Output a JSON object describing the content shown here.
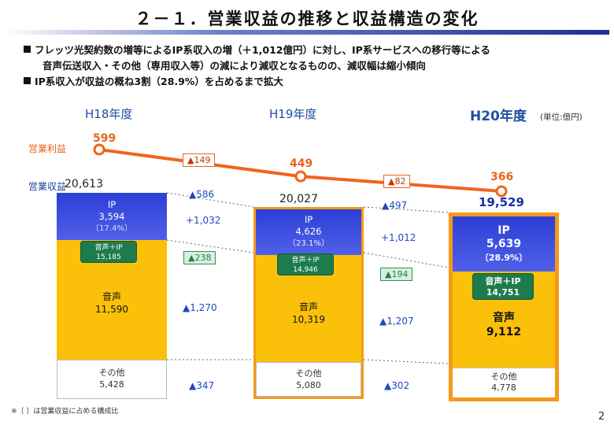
{
  "title": "２－１．営業収益の推移と収益構造の変化",
  "bullets": [
    "フレッツ光契約数の増等によるIP系収入の増（＋1,012億円）に対し、IP系サービスへの移行等による",
    "音声伝送収入・その他（専用収入等）の減により減収となるものの、減収幅は縮小傾向",
    "IP系収入が収益の概ね3割（28.9%）を占めるまで拡大"
  ],
  "unit_label": "(単位:億円)",
  "labels": {
    "operating_profit": "営業利益",
    "operating_revenue": "営業収益"
  },
  "chart_data": {
    "type": "bar",
    "categories": [
      "H18年度",
      "H19年度",
      "H20年度"
    ],
    "stacked": true,
    "series": [
      {
        "name": "IP",
        "values": [
          3594,
          4626,
          5639
        ],
        "share": [
          "〔17.4%〕",
          "〔23.1%〕",
          "〔28.9%〕"
        ]
      },
      {
        "name": "音声",
        "values": [
          11590,
          10319,
          9112
        ]
      },
      {
        "name": "その他",
        "values": [
          5428,
          5080,
          4778
        ]
      }
    ],
    "voice_ip": {
      "name": "音声＋IP",
      "values": [
        15185,
        14946,
        14751
      ]
    },
    "totals": [
      20613,
      20027,
      19529
    ],
    "operating_profit": {
      "name": "営業利益",
      "values": [
        599,
        449,
        366
      ]
    },
    "changes": [
      {
        "profit": "▲149",
        "revenue": "▲586",
        "ip": "+1,032",
        "voice_ip": "▲238",
        "voice": "▲1,270",
        "other": "▲347"
      },
      {
        "profit": "▲82",
        "revenue": "▲497",
        "ip": "+1,012",
        "voice_ip": "▲194",
        "voice": "▲1,207",
        "other": "▲302"
      }
    ],
    "display": {
      "totals": [
        "20,613",
        "20,027",
        "19,529"
      ],
      "ip": [
        "3,594",
        "4,626",
        "5,639"
      ],
      "voice": [
        "11,590",
        "10,319",
        "9,112"
      ],
      "other": [
        "5,428",
        "5,080",
        "4,778"
      ],
      "voice_ip": [
        "15,185",
        "14,946",
        "14,751"
      ],
      "profit": [
        "599",
        "449",
        "366"
      ]
    },
    "colors": {
      "ip": "#3446dd",
      "voice": "#fbc10a",
      "voice_ip": "#1e7b4d",
      "profit_line": "#f0641e",
      "highlight": "#f59a18"
    }
  },
  "footnote": "※〔 〕は営業収益に占める構成比",
  "page_number": "2"
}
